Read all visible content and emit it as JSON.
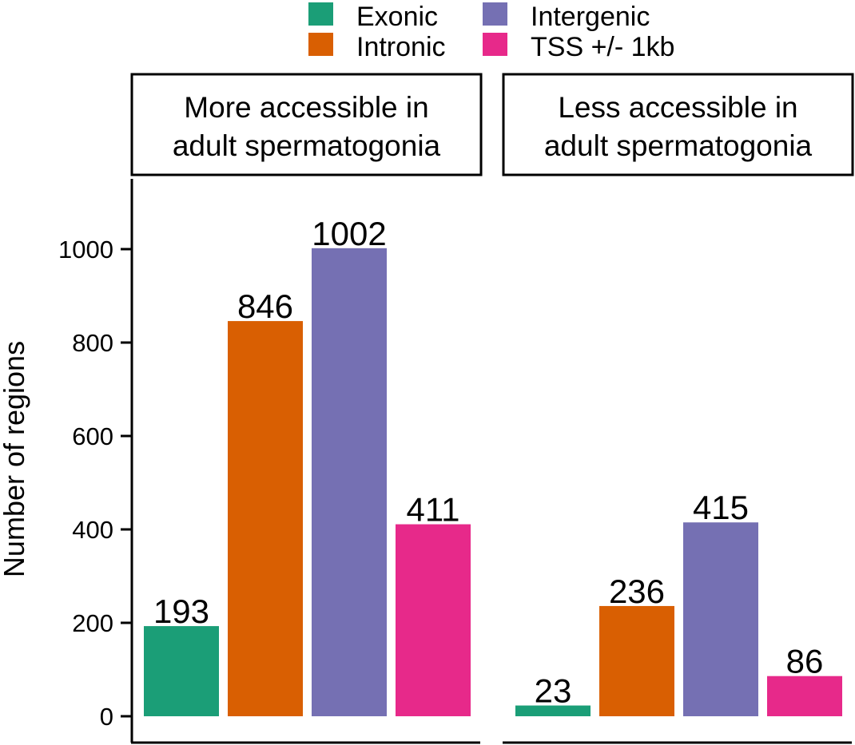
{
  "chart_data": {
    "type": "bar",
    "ylabel": "Number of regions",
    "xlabel": "",
    "ylim": [
      0,
      1150
    ],
    "yticks": [
      0,
      200,
      400,
      600,
      800,
      1000
    ],
    "grid": false,
    "legend_position": "top",
    "categories": [
      "Exonic",
      "Intronic",
      "Intergenic",
      "TSS +/- 1kb"
    ],
    "colors": [
      "#1b9e77",
      "#d95f02",
      "#7570b3",
      "#e7298a"
    ],
    "legend": [
      {
        "label": "Exonic",
        "color": "#1b9e77"
      },
      {
        "label": "Intronic",
        "color": "#d95f02"
      },
      {
        "label": "Intergenic",
        "color": "#7570b3"
      },
      {
        "label": "TSS +/- 1kb",
        "color": "#e7298a"
      }
    ],
    "panels": [
      {
        "strip": [
          "More accessible in",
          "adult spermatogonia"
        ],
        "values": [
          193,
          846,
          1002,
          411
        ]
      },
      {
        "strip": [
          "Less accessible in",
          "adult spermatogonia"
        ],
        "values": [
          23,
          236,
          415,
          86
        ]
      }
    ]
  }
}
